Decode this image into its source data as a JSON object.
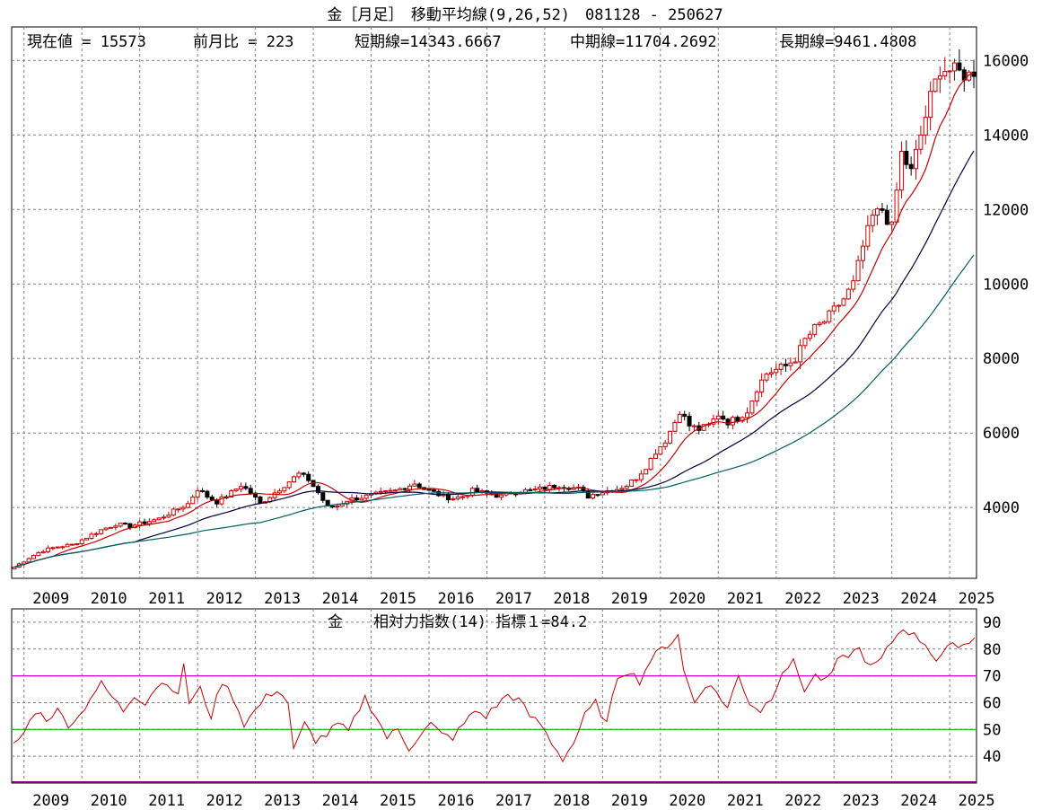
{
  "header": {
    "title": "金［月足］　移動平均線(9,26,52)　081128 - 250627",
    "current_label": "現在値 = 15573",
    "change_label": "前月比 = 223",
    "short_label": "短期線=14343.6667",
    "mid_label": "中期線=11704.2692",
    "long_label": "長期線=9461.4808"
  },
  "rsi_header": {
    "title": "金　　相対力指数(14) 指標１=84.2"
  },
  "colors": {
    "up_candle": "#cc0000",
    "down_candle": "#000000",
    "short_ma": "#cc0000",
    "mid_ma": "#000040",
    "long_ma": "#006060",
    "rsi_line": "#cc0000",
    "rsi_70": "#dd00dd",
    "rsi_50": "#00bb00",
    "grid": "#808080"
  },
  "chart_data": [
    {
      "type": "candlestick",
      "title": "金［月足］　移動平均線(9,26,52)　081128 - 250627",
      "ylim": [
        2100,
        16900
      ],
      "yticks": [
        4000,
        6000,
        8000,
        10000,
        12000,
        14000,
        16000
      ],
      "xticks": [
        "2009",
        "2010",
        "2011",
        "2012",
        "2013",
        "2014",
        "2015",
        "2016",
        "2017",
        "2018",
        "2019",
        "2020",
        "2021",
        "2022",
        "2023",
        "2024",
        "2025"
      ],
      "x_start": "2008-11",
      "x_end": "2025-06",
      "anchor_closes": [
        [
          0,
          2400
        ],
        [
          3,
          2650
        ],
        [
          6,
          2850
        ],
        [
          9,
          2950
        ],
        [
          12,
          3000
        ],
        [
          15,
          3200
        ],
        [
          18,
          3400
        ],
        [
          21,
          3550
        ],
        [
          24,
          3500
        ],
        [
          27,
          3600
        ],
        [
          30,
          3700
        ],
        [
          33,
          3900
        ],
        [
          36,
          4100
        ],
        [
          38,
          4500
        ],
        [
          40,
          4300
        ],
        [
          42,
          4150
        ],
        [
          45,
          4400
        ],
        [
          47,
          4600
        ],
        [
          49,
          4400
        ],
        [
          51,
          4100
        ],
        [
          53,
          4300
        ],
        [
          55,
          4500
        ],
        [
          57,
          4700
        ],
        [
          59,
          4900
        ],
        [
          61,
          4750
        ],
        [
          63,
          4400
        ],
        [
          65,
          4000
        ],
        [
          67,
          4050
        ],
        [
          69,
          4200
        ],
        [
          71,
          4250
        ],
        [
          73,
          4300
        ],
        [
          75,
          4350
        ],
        [
          77,
          4400
        ],
        [
          79,
          4450
        ],
        [
          81,
          4550
        ],
        [
          83,
          4650
        ],
        [
          85,
          4500
        ],
        [
          87,
          4400
        ],
        [
          89,
          4300
        ],
        [
          91,
          4250
        ],
        [
          93,
          4300
        ],
        [
          95,
          4450
        ],
        [
          97,
          4400
        ],
        [
          99,
          4350
        ],
        [
          101,
          4300
        ],
        [
          103,
          4400
        ],
        [
          105,
          4450
        ],
        [
          107,
          4450
        ],
        [
          109,
          4500
        ],
        [
          111,
          4550
        ],
        [
          113,
          4600
        ],
        [
          115,
          4550
        ],
        [
          117,
          4500
        ],
        [
          119,
          4300
        ],
        [
          121,
          4400
        ],
        [
          123,
          4450
        ],
        [
          125,
          4500
        ],
        [
          127,
          4600
        ],
        [
          129,
          4800
        ],
        [
          131,
          5100
        ],
        [
          133,
          5500
        ],
        [
          135,
          5800
        ],
        [
          137,
          6300
        ],
        [
          138,
          6600
        ],
        [
          140,
          6200
        ],
        [
          142,
          6100
        ],
        [
          144,
          6200
        ],
        [
          146,
          6500
        ],
        [
          148,
          6300
        ],
        [
          150,
          6400
        ],
        [
          152,
          6600
        ],
        [
          154,
          7200
        ],
        [
          156,
          7600
        ],
        [
          158,
          7700
        ],
        [
          160,
          7800
        ],
        [
          162,
          8000
        ],
        [
          164,
          8500
        ],
        [
          166,
          8800
        ],
        [
          168,
          9000
        ],
        [
          170,
          9300
        ],
        [
          172,
          9600
        ],
        [
          174,
          10000
        ],
        [
          176,
          11000
        ],
        [
          178,
          11800
        ],
        [
          180,
          12000
        ],
        [
          182,
          11500
        ],
        [
          184,
          13500
        ],
        [
          186,
          13000
        ],
        [
          188,
          14000
        ],
        [
          190,
          15000
        ],
        [
          192,
          15800
        ],
        [
          199,
          15573
        ]
      ],
      "last_values": {
        "close": 15573,
        "change": 223
      },
      "series": [
        {
          "name": "短期線(9)",
          "last": 14343.6667
        },
        {
          "name": "中期線(26)",
          "last": 11704.2692
        },
        {
          "name": "長期線(52)",
          "last": 9461.4808
        }
      ]
    },
    {
      "type": "line",
      "title": "金　　相対力指数(14) 指標１=84.2",
      "ylim": [
        30,
        95
      ],
      "yticks": [
        40,
        50,
        60,
        70,
        80,
        90
      ],
      "reference_lines": [
        70,
        50
      ],
      "last_value": 84.2,
      "xticks": [
        "2009",
        "2010",
        "2011",
        "2012",
        "2013",
        "2014",
        "2015",
        "2016",
        "2017",
        "2018",
        "2019",
        "2020",
        "2021",
        "2022",
        "2023",
        "2024",
        "2025"
      ],
      "anchor_values": [
        [
          0,
          44
        ],
        [
          2,
          49
        ],
        [
          4,
          57
        ],
        [
          6,
          54
        ],
        [
          8,
          57
        ],
        [
          10,
          52
        ],
        [
          12,
          55
        ],
        [
          14,
          62
        ],
        [
          16,
          67
        ],
        [
          18,
          62
        ],
        [
          20,
          57
        ],
        [
          22,
          63
        ],
        [
          24,
          60
        ],
        [
          26,
          66
        ],
        [
          28,
          68
        ],
        [
          30,
          62
        ],
        [
          31,
          75
        ],
        [
          32,
          60
        ],
        [
          34,
          65
        ],
        [
          36,
          55
        ],
        [
          38,
          68
        ],
        [
          40,
          62
        ],
        [
          42,
          52
        ],
        [
          44,
          57
        ],
        [
          46,
          62
        ],
        [
          48,
          65
        ],
        [
          50,
          60
        ],
        [
          51,
          42
        ],
        [
          53,
          52
        ],
        [
          55,
          46
        ],
        [
          57,
          48
        ],
        [
          59,
          52
        ],
        [
          61,
          49
        ],
        [
          63,
          58
        ],
        [
          64,
          62
        ],
        [
          66,
          55
        ],
        [
          68,
          47
        ],
        [
          70,
          50
        ],
        [
          72,
          43
        ],
        [
          74,
          48
        ],
        [
          76,
          52
        ],
        [
          78,
          48
        ],
        [
          80,
          47
        ],
        [
          82,
          52
        ],
        [
          84,
          57
        ],
        [
          86,
          55
        ],
        [
          88,
          59
        ],
        [
          90,
          63
        ],
        [
          92,
          61
        ],
        [
          94,
          55
        ],
        [
          96,
          52
        ],
        [
          98,
          45
        ],
        [
          100,
          39
        ],
        [
          102,
          45
        ],
        [
          104,
          55
        ],
        [
          106,
          60
        ],
        [
          108,
          52
        ],
        [
          110,
          70
        ],
        [
          112,
          72
        ],
        [
          114,
          68
        ],
        [
          116,
          76
        ],
        [
          118,
          80
        ],
        [
          120,
          83
        ],
        [
          121,
          86
        ],
        [
          122,
          72
        ],
        [
          124,
          60
        ],
        [
          126,
          67
        ],
        [
          128,
          64
        ],
        [
          130,
          58
        ],
        [
          132,
          70
        ],
        [
          134,
          60
        ],
        [
          136,
          57
        ],
        [
          138,
          62
        ],
        [
          140,
          72
        ],
        [
          142,
          75
        ],
        [
          144,
          65
        ],
        [
          146,
          70
        ],
        [
          148,
          68
        ],
        [
          150,
          75
        ],
        [
          152,
          78
        ],
        [
          154,
          80
        ],
        [
          156,
          73
        ],
        [
          158,
          76
        ],
        [
          160,
          83
        ],
        [
          162,
          88
        ],
        [
          164,
          85
        ],
        [
          166,
          82
        ],
        [
          168,
          76
        ],
        [
          170,
          80
        ],
        [
          172,
          82
        ],
        [
          174,
          82
        ],
        [
          175,
          84.2
        ]
      ]
    }
  ]
}
